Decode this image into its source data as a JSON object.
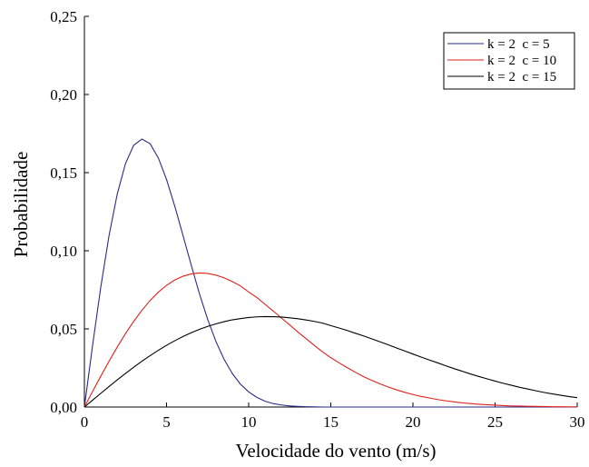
{
  "chart_data": {
    "type": "line",
    "xlabel": "Velocidade do vento (m/s)",
    "ylabel": "Probabilidade",
    "xlim": [
      0,
      30
    ],
    "ylim": [
      0,
      0.25
    ],
    "xticks": [
      0,
      5,
      10,
      15,
      20,
      25,
      30
    ],
    "yticks": [
      0,
      0.05,
      0.1,
      0.15,
      0.2,
      0.25
    ],
    "xtick_labels": [
      "0",
      "5",
      "10",
      "15",
      "20",
      "25",
      "30"
    ],
    "ytick_labels": [
      "0,00",
      "0,05",
      "0,10",
      "0,15",
      "0,20",
      "0,25"
    ],
    "grid": false,
    "legend_position": "top-right",
    "x": [
      0,
      0.5,
      1,
      1.5,
      2,
      2.5,
      3,
      3.5,
      4,
      4.5,
      5,
      5.5,
      6,
      6.5,
      7,
      7.5,
      8,
      8.5,
      9,
      9.5,
      10,
      10.5,
      11,
      11.5,
      12,
      12.5,
      13,
      13.5,
      14,
      14.5,
      15,
      15.5,
      16,
      16.5,
      17,
      17.5,
      18,
      18.5,
      19,
      19.5,
      20,
      20.5,
      21,
      21.5,
      22,
      22.5,
      23,
      23.5,
      24,
      24.5,
      25,
      25.5,
      26,
      26.5,
      27,
      27.5,
      28,
      28.5,
      29,
      29.5,
      30
    ],
    "series": [
      {
        "name": "k = 2  c = 5",
        "color": "#2a2a8c",
        "values": [
          0.0,
          0.0396,
          0.0769,
          0.1097,
          0.1363,
          0.1558,
          0.1675,
          0.1715,
          0.1685,
          0.1594,
          0.1456,
          0.1286,
          0.1099,
          0.0909,
          0.0726,
          0.0562,
          0.0421,
          0.0306,
          0.0215,
          0.0146,
          0.0097,
          0.0062,
          0.0037,
          0.0022,
          0.0013,
          0.0007,
          0.0004,
          0.0002,
          0.0001,
          0.0,
          0.0,
          0.0,
          0.0,
          0.0,
          0.0,
          0.0,
          0.0,
          0.0,
          0.0,
          0.0,
          0.0,
          0.0,
          0.0,
          0.0,
          0.0,
          0.0,
          0.0,
          0.0,
          0.0,
          0.0,
          0.0,
          0.0,
          0.0,
          0.0,
          0.0,
          0.0,
          0.0,
          0.0,
          0.0,
          0.0,
          0.0
        ]
      },
      {
        "name": "k = 2  c = 10",
        "color": "#e0201c",
        "values": [
          0.0,
          0.01,
          0.0198,
          0.0293,
          0.0384,
          0.047,
          0.0548,
          0.0619,
          0.0682,
          0.0735,
          0.0779,
          0.0813,
          0.0837,
          0.0852,
          0.0858,
          0.0855,
          0.0844,
          0.0827,
          0.0803,
          0.0775,
          0.0736,
          0.0701,
          0.0657,
          0.0614,
          0.0569,
          0.0525,
          0.048,
          0.0437,
          0.0394,
          0.0353,
          0.0316,
          0.0283,
          0.0252,
          0.0222,
          0.0194,
          0.017,
          0.0148,
          0.0128,
          0.011,
          0.0094,
          0.008,
          0.0068,
          0.0058,
          0.0048,
          0.004,
          0.0033,
          0.0027,
          0.0022,
          0.0018,
          0.0015,
          0.0012,
          0.0009,
          0.0007,
          0.0006,
          0.0005,
          0.0004,
          0.0003,
          0.0002,
          0.0002,
          0.0001,
          0.0001
        ]
      },
      {
        "name": "k = 2  c = 15",
        "color": "#000000",
        "values": [
          0.0,
          0.0044,
          0.0088,
          0.0131,
          0.0174,
          0.0215,
          0.0255,
          0.0293,
          0.0329,
          0.0363,
          0.0395,
          0.0424,
          0.0451,
          0.0475,
          0.0497,
          0.0516,
          0.0532,
          0.0546,
          0.0558,
          0.0566,
          0.0573,
          0.0577,
          0.0579,
          0.0578,
          0.0576,
          0.0571,
          0.0565,
          0.0557,
          0.0548,
          0.0537,
          0.0521,
          0.0506,
          0.049,
          0.0472,
          0.0455,
          0.0436,
          0.0417,
          0.0398,
          0.0378,
          0.0359,
          0.0339,
          0.032,
          0.0301,
          0.0283,
          0.0264,
          0.0246,
          0.0229,
          0.0212,
          0.0196,
          0.0181,
          0.0166,
          0.0152,
          0.0139,
          0.0126,
          0.0115,
          0.0104,
          0.0093,
          0.0084,
          0.0075,
          0.0067,
          0.006
        ]
      }
    ]
  }
}
